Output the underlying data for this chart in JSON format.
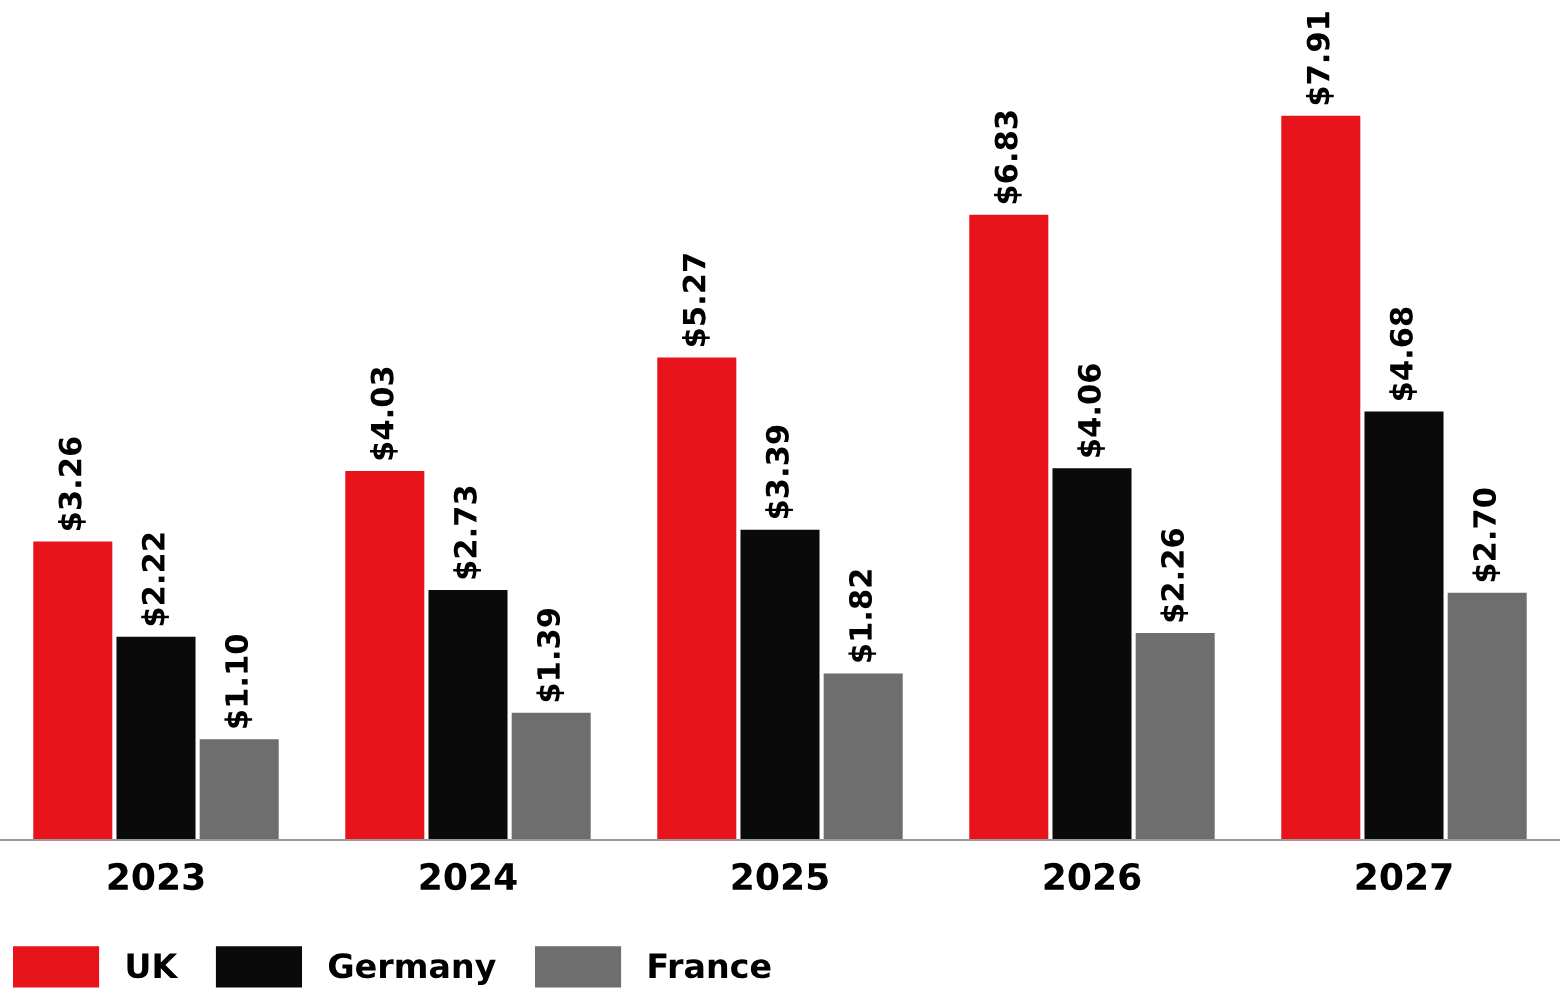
{
  "chart_data": {
    "type": "bar",
    "categories": [
      "2023",
      "2024",
      "2025",
      "2026",
      "2027"
    ],
    "series": [
      {
        "name": "UK",
        "color": "#e8141c",
        "values": [
          3.26,
          4.03,
          5.27,
          6.83,
          7.91
        ],
        "value_labels": [
          "$3.26",
          "$4.03",
          "$5.27",
          "$6.83",
          "$7.91"
        ]
      },
      {
        "name": "Germany",
        "color": "#0a0a0a",
        "values": [
          2.22,
          2.73,
          3.39,
          4.06,
          4.68
        ],
        "value_labels": [
          "$2.22",
          "$2.73",
          "$3.39",
          "$4.06",
          "$4.68"
        ]
      },
      {
        "name": "France",
        "color": "#6e6e6e",
        "values": [
          1.1,
          1.39,
          1.82,
          2.26,
          2.7
        ],
        "value_labels": [
          "$1.10",
          "$1.39",
          "$1.82",
          "$2.26",
          "$2.70"
        ]
      }
    ],
    "legend": "bottom left",
    "grid": false
  }
}
